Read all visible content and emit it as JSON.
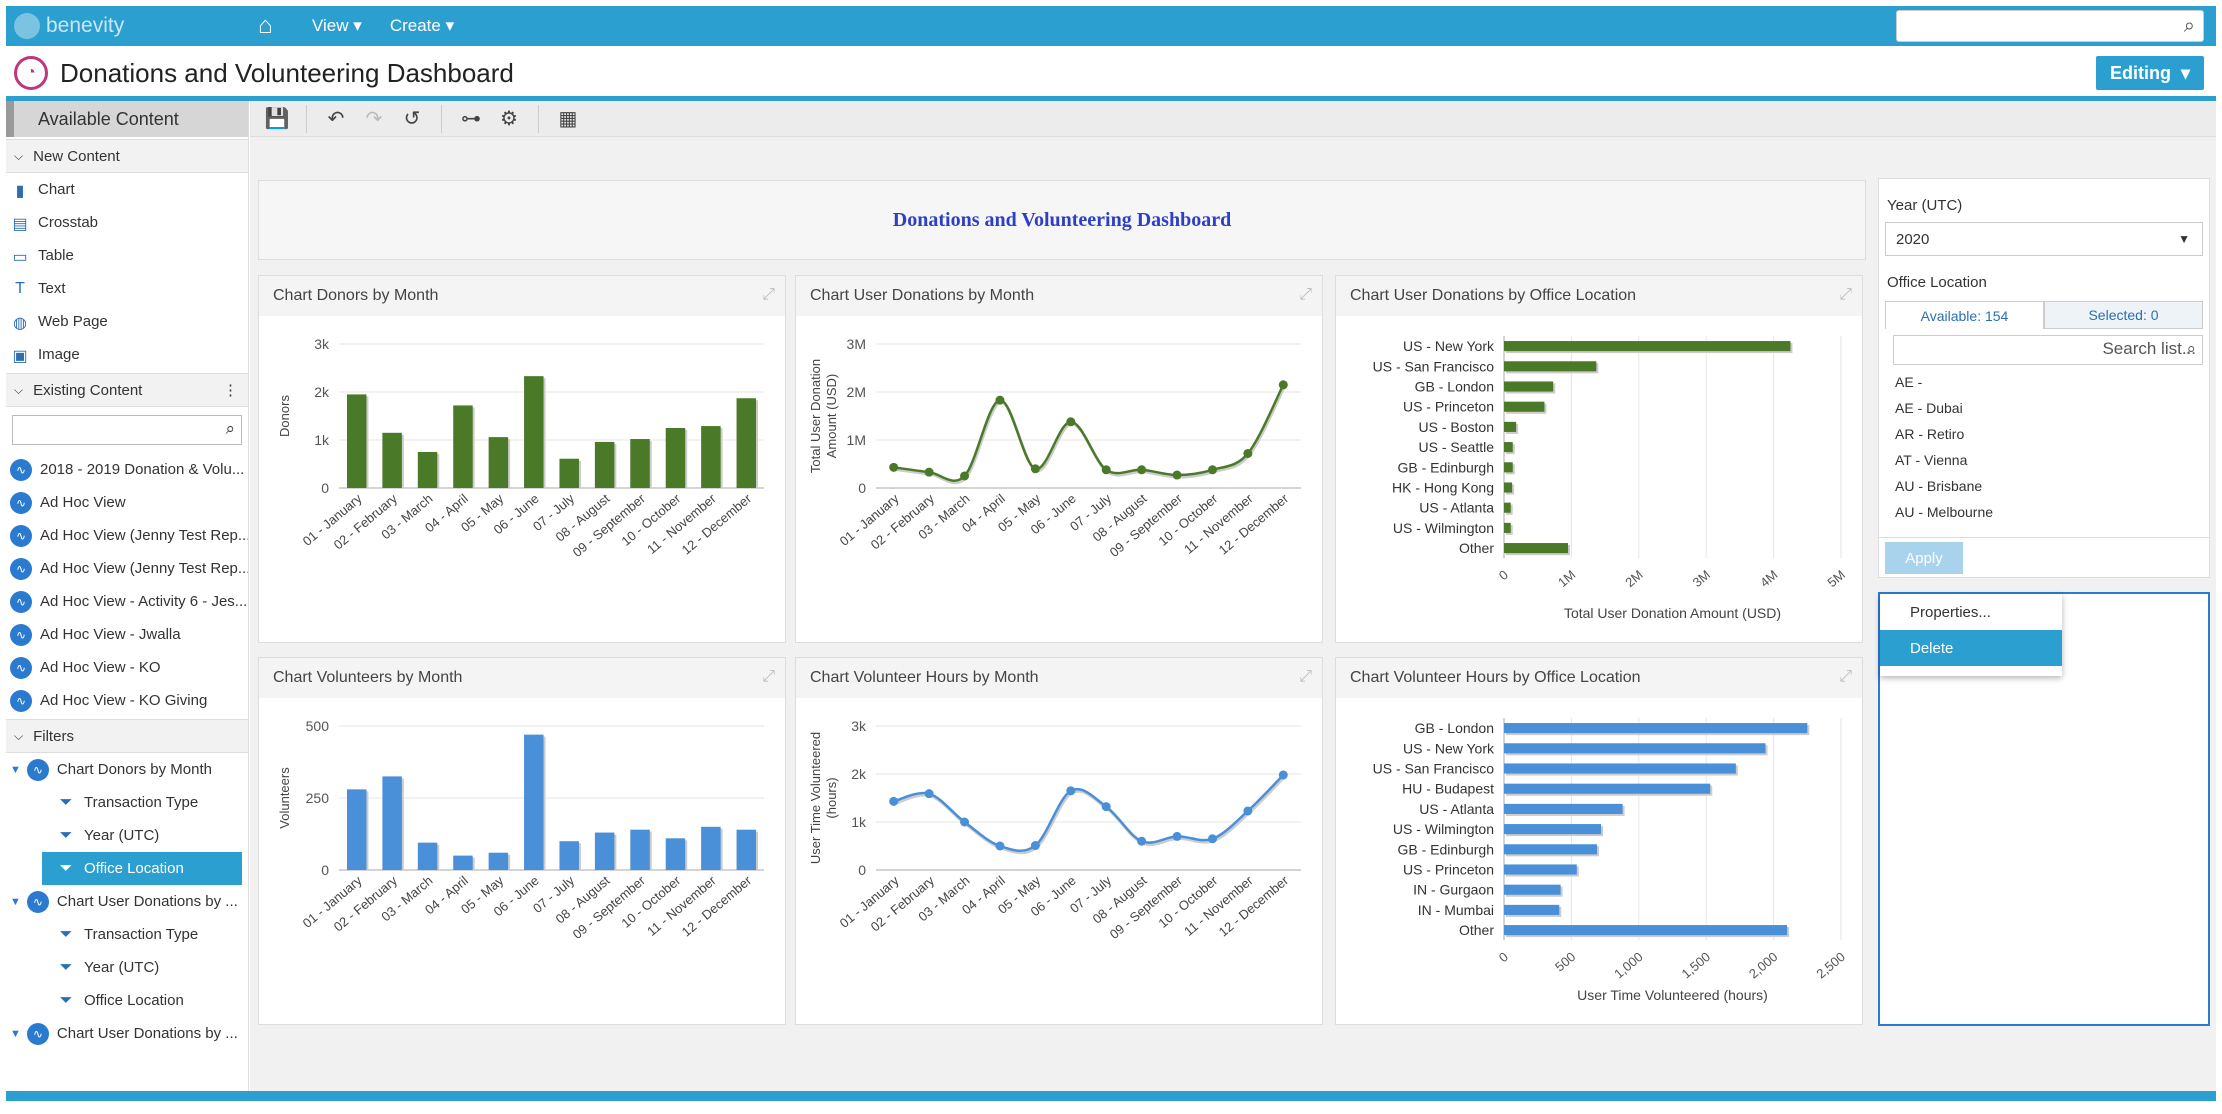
{
  "app": {
    "logo": "benevity",
    "nav": [
      "View",
      "Create"
    ]
  },
  "title": "Donations and Volunteering Dashboard",
  "mode": "Editing",
  "left": {
    "header": "Available Content",
    "new_content": "New Content",
    "new_items": [
      {
        "label": "Chart",
        "icon": "chart-icon"
      },
      {
        "label": "Crosstab",
        "icon": "crosstab-icon"
      },
      {
        "label": "Table",
        "icon": "table-icon"
      },
      {
        "label": "Text",
        "icon": "text-icon"
      },
      {
        "label": "Web Page",
        "icon": "globe-icon"
      },
      {
        "label": "Image",
        "icon": "image-icon"
      }
    ],
    "existing": "Existing Content",
    "existing_items": [
      "2018 - 2019 Donation & Volu...",
      "Ad Hoc View",
      "Ad Hoc View (Jenny Test Rep...",
      "Ad Hoc View (Jenny Test Rep...",
      "Ad Hoc View - Activity 6 - Jes...",
      "Ad Hoc View - Jwalla",
      "Ad Hoc View - KO",
      "Ad Hoc View - KO Giving"
    ],
    "filters": "Filters",
    "filter_groups": [
      {
        "name": "Chart Donors by Month",
        "items": [
          "Transaction Type",
          "Year (UTC)",
          "Office Location"
        ]
      },
      {
        "name": "Chart User Donations by ...",
        "items": [
          "Transaction Type",
          "Year (UTC)",
          "Office Location"
        ]
      },
      {
        "name": "Chart User Donations by ..."
      }
    ]
  },
  "dashboard_title": "Donations and Volunteering Dashboard",
  "months": [
    "01 - January",
    "02 - February",
    "03 - March",
    "04 - April",
    "05 - May",
    "06 - June",
    "07 - July",
    "08 - August",
    "09 - September",
    "10 - October",
    "11 - November",
    "12 - December"
  ],
  "chart_data": [
    {
      "type": "bar",
      "title": "Chart Donors by Month",
      "ylabel": "Donors",
      "ylim": [
        0,
        3000
      ],
      "yticks": [
        "0",
        "1k",
        "2k",
        "3k"
      ],
      "values": [
        1950,
        1150,
        750,
        1720,
        1060,
        2330,
        610,
        960,
        1020,
        1250,
        1290,
        1870
      ],
      "color": "#4a7a28"
    },
    {
      "type": "line",
      "title": "Chart User Donations by Month",
      "ylabel": "Total User Donation Amount (USD)",
      "ylim": [
        0,
        3000000
      ],
      "yticks": [
        "0",
        "1M",
        "2M",
        "3M"
      ],
      "values": [
        430000,
        330000,
        250000,
        1830000,
        400000,
        1380000,
        380000,
        380000,
        270000,
        380000,
        720000,
        2150000
      ],
      "color": "#4a7a28"
    },
    {
      "type": "hbar",
      "title": "Chart User Donations by Office Location",
      "xlabel": "Total User Donation Amount (USD)",
      "xlim": [
        0,
        5000000
      ],
      "xticks": [
        "0",
        "1M",
        "2M",
        "3M",
        "4M",
        "5M"
      ],
      "categories": [
        "US - New York",
        "US - San Francisco",
        "GB - London",
        "US - Princeton",
        "US - Boston",
        "US - Seattle",
        "GB - Edinburgh",
        "HK - Hong Kong",
        "US - Atlanta",
        "US - Wilmington",
        "Other"
      ],
      "values": [
        4250000,
        1370000,
        730000,
        600000,
        180000,
        130000,
        130000,
        120000,
        100000,
        100000,
        950000
      ],
      "color": "#4a7a28"
    },
    {
      "type": "bar",
      "title": "Chart Volunteers by Month",
      "ylabel": "Volunteers",
      "ylim": [
        0,
        500
      ],
      "yticks": [
        "0",
        "250",
        "500"
      ],
      "values": [
        280,
        325,
        95,
        50,
        60,
        470,
        100,
        130,
        140,
        110,
        150,
        140
      ],
      "color": "#4a90d9"
    },
    {
      "type": "line",
      "title": "Chart Volunteer Hours by Month",
      "ylabel": "User Time Volunteered (hours)",
      "ylim": [
        0,
        3000
      ],
      "yticks": [
        "0",
        "1k",
        "2k",
        "3k"
      ],
      "values": [
        1430,
        1590,
        1000,
        500,
        510,
        1650,
        1320,
        600,
        700,
        650,
        1230,
        1980
      ],
      "color": "#4a90d9"
    },
    {
      "type": "hbar",
      "title": "Chart Volunteer Hours by Office Location",
      "xlabel": "User Time Volunteered (hours)",
      "xlim": [
        0,
        2500
      ],
      "xticks": [
        "0",
        "500",
        "1,000",
        "1,500",
        "2,000",
        "2,500"
      ],
      "categories": [
        "GB - London",
        "US - New York",
        "US - San Francisco",
        "HU - Budapest",
        "US - Atlanta",
        "US - Wilmington",
        "GB - Edinburgh",
        "US - Princeton",
        "IN - Gurgaon",
        "IN - Mumbai",
        "Other"
      ],
      "values": [
        2250,
        1940,
        1720,
        1530,
        880,
        720,
        690,
        540,
        420,
        410,
        2100
      ],
      "color": "#4a90d9"
    }
  ],
  "filters_panel": {
    "year_label": "Year (UTC)",
    "year_value": "2020",
    "location_label": "Office Location",
    "available": "Available: 154",
    "selected": "Selected: 0",
    "search_placeholder": "Search list...",
    "options": [
      "AE -",
      "AE - Dubai",
      "AR - Retiro",
      "AT - Vienna",
      "AU - Brisbane",
      "AU - Melbourne"
    ],
    "apply": "Apply"
  },
  "context_menu": {
    "properties": "Properties...",
    "delete": "Delete"
  }
}
